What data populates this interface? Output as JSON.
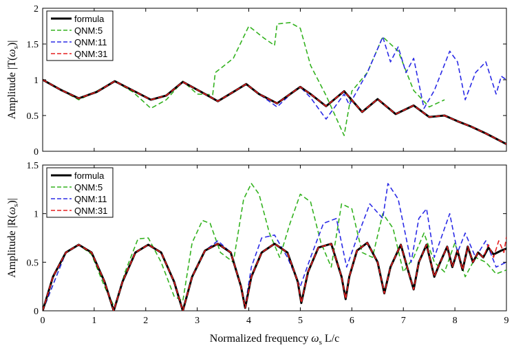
{
  "chart_data": [
    {
      "type": "line",
      "panel": "top",
      "ylabel": "Amplitude |T(ω_s)|",
      "ylabel_parts": {
        "prefix": "Amplitude |T(",
        "symbol": "ω",
        "subscript": "s",
        "suffix": ")|"
      },
      "xlim": [
        0,
        9
      ],
      "ylim": [
        0,
        2
      ],
      "xticks": [
        0,
        1,
        2,
        3,
        4,
        5,
        6,
        7,
        8,
        9
      ],
      "yticks": [
        0,
        0.5,
        1,
        1.5,
        2
      ],
      "ytick_labels": [
        "0",
        "0.5",
        "1",
        "1.5",
        "2"
      ],
      "legend": {
        "position": "top-left",
        "entries": [
          "formula",
          "QNM:5",
          "QNM:11",
          "QNM:31"
        ]
      },
      "series": [
        {
          "name": "formula",
          "color": "#000000",
          "style": "solid",
          "x": [
            0,
            0.35,
            0.7,
            1.05,
            1.4,
            1.75,
            2.1,
            2.4,
            2.72,
            3.05,
            3.4,
            3.7,
            3.95,
            4.2,
            4.55,
            4.9,
            5.0,
            5.2,
            5.5,
            5.85,
            6.2,
            6.5,
            6.85,
            7.2,
            7.5,
            7.8,
            8.05,
            8.3,
            8.6,
            9.0
          ],
          "y": [
            1.0,
            0.86,
            0.74,
            0.83,
            0.98,
            0.85,
            0.72,
            0.78,
            0.97,
            0.84,
            0.7,
            0.83,
            0.94,
            0.8,
            0.67,
            0.85,
            0.9,
            0.8,
            0.63,
            0.84,
            0.55,
            0.73,
            0.52,
            0.64,
            0.48,
            0.5,
            0.42,
            0.35,
            0.25,
            0.1
          ]
        },
        {
          "name": "QNM:5",
          "color": "#33B21F",
          "style": "dashed",
          "x": [
            0,
            0.35,
            0.7,
            1.05,
            1.4,
            1.75,
            2.1,
            2.4,
            2.72,
            3.0,
            3.3,
            3.35,
            3.7,
            4.0,
            4.3,
            4.5,
            4.55,
            4.8,
            5.0,
            5.2,
            5.5,
            5.85,
            6.0,
            6.3,
            6.6,
            6.9,
            7.2,
            7.5,
            7.8
          ],
          "y": [
            1.0,
            0.86,
            0.72,
            0.84,
            0.98,
            0.83,
            0.6,
            0.72,
            0.98,
            0.8,
            0.79,
            1.1,
            1.3,
            1.75,
            1.58,
            1.48,
            1.78,
            1.8,
            1.72,
            1.2,
            0.78,
            0.22,
            0.84,
            1.1,
            1.6,
            1.4,
            0.85,
            0.62,
            0.72
          ]
        },
        {
          "name": "QNM:11",
          "color": "#2A2AE6",
          "style": "dashed",
          "x": [
            0,
            0.35,
            0.7,
            1.05,
            1.4,
            1.75,
            2.1,
            2.4,
            2.72,
            3.05,
            3.4,
            3.7,
            3.95,
            4.2,
            4.55,
            4.9,
            5.0,
            5.2,
            5.5,
            5.85,
            5.95,
            6.3,
            6.6,
            6.75,
            6.9,
            7.05,
            7.2,
            7.4,
            7.6,
            7.9,
            8.05,
            8.2,
            8.4,
            8.6,
            8.8,
            8.9,
            9.0
          ],
          "y": [
            1.0,
            0.86,
            0.74,
            0.83,
            0.98,
            0.85,
            0.72,
            0.78,
            0.97,
            0.84,
            0.7,
            0.83,
            0.94,
            0.8,
            0.62,
            0.86,
            0.9,
            0.75,
            0.45,
            0.8,
            0.65,
            1.1,
            1.6,
            1.25,
            1.46,
            1.1,
            1.3,
            0.6,
            0.85,
            1.4,
            1.25,
            0.72,
            1.1,
            1.25,
            0.8,
            1.05,
            1.0
          ]
        },
        {
          "name": "QNM:31",
          "color": "#E61E1E",
          "style": "dashed",
          "x": [
            0,
            0.35,
            0.7,
            1.05,
            1.4,
            1.75,
            2.1,
            2.4,
            2.72,
            3.05,
            3.4,
            3.7,
            3.95,
            4.2,
            4.55,
            4.9,
            5.0,
            5.2,
            5.5,
            5.85,
            6.2,
            6.5,
            6.85,
            7.2,
            7.5,
            7.8,
            8.05,
            8.3,
            8.6,
            9.0
          ],
          "y": [
            1.0,
            0.86,
            0.74,
            0.83,
            0.98,
            0.85,
            0.72,
            0.78,
            0.97,
            0.84,
            0.7,
            0.83,
            0.94,
            0.8,
            0.67,
            0.85,
            0.9,
            0.8,
            0.63,
            0.84,
            0.55,
            0.73,
            0.52,
            0.64,
            0.48,
            0.5,
            0.42,
            0.35,
            0.25,
            0.1
          ]
        }
      ]
    },
    {
      "type": "line",
      "panel": "bottom",
      "xlabel": "Normalized frequency ω_s L/c",
      "xlabel_parts": {
        "prefix": "Normalized frequency ",
        "symbol": "ω",
        "subscript": "s",
        "suffix": " L/c"
      },
      "ylabel": "Amplitude |R(ω_s)|",
      "ylabel_parts": {
        "prefix": "Amplitude |R(",
        "symbol": "ω",
        "subscript": "s",
        "suffix": ")|"
      },
      "xlim": [
        0,
        9
      ],
      "ylim": [
        0,
        1.5
      ],
      "xticks": [
        0,
        1,
        2,
        3,
        4,
        5,
        6,
        7,
        8,
        9
      ],
      "xtick_labels": [
        "0",
        "1",
        "2",
        "3",
        "4",
        "5",
        "6",
        "7",
        "8",
        "9"
      ],
      "yticks": [
        0,
        0.5,
        1,
        1.5
      ],
      "ytick_labels": [
        "0",
        "0.5",
        "1",
        "1.5"
      ],
      "legend": {
        "position": "top-left",
        "entries": [
          "formula",
          "QNM:5",
          "QNM:11",
          "QNM:31"
        ]
      },
      "series": [
        {
          "name": "formula",
          "color": "#000000",
          "style": "solid",
          "x": [
            0,
            0.2,
            0.45,
            0.7,
            0.95,
            1.2,
            1.38,
            1.55,
            1.8,
            2.05,
            2.3,
            2.55,
            2.72,
            2.9,
            3.15,
            3.4,
            3.65,
            3.85,
            3.93,
            4.05,
            4.25,
            4.5,
            4.75,
            4.95,
            5.02,
            5.15,
            5.35,
            5.6,
            5.8,
            5.88,
            5.95,
            6.1,
            6.3,
            6.5,
            6.63,
            6.75,
            6.95,
            7.1,
            7.2,
            7.3,
            7.45,
            7.6,
            7.7,
            7.85,
            7.95,
            8.05,
            8.15,
            8.25,
            8.35,
            8.45,
            8.55,
            8.65,
            8.75,
            8.9,
            9.0
          ],
          "y": [
            0,
            0.35,
            0.6,
            0.68,
            0.6,
            0.3,
            0,
            0.3,
            0.6,
            0.68,
            0.6,
            0.3,
            0,
            0.35,
            0.62,
            0.69,
            0.6,
            0.25,
            0.03,
            0.35,
            0.6,
            0.69,
            0.6,
            0.3,
            0.08,
            0.4,
            0.65,
            0.69,
            0.35,
            0.12,
            0.35,
            0.62,
            0.7,
            0.5,
            0.18,
            0.45,
            0.68,
            0.4,
            0.22,
            0.5,
            0.68,
            0.35,
            0.48,
            0.66,
            0.45,
            0.62,
            0.42,
            0.66,
            0.5,
            0.6,
            0.55,
            0.65,
            0.58,
            0.62,
            0.64
          ]
        },
        {
          "name": "QNM:5",
          "color": "#33B21F",
          "style": "dashed",
          "x": [
            0,
            0.45,
            0.7,
            0.95,
            1.2,
            1.4,
            1.6,
            1.85,
            2.05,
            2.3,
            2.55,
            2.72,
            2.9,
            3.1,
            3.25,
            3.45,
            3.7,
            3.9,
            4.05,
            4.2,
            4.4,
            4.6,
            4.8,
            5.0,
            5.2,
            5.4,
            5.6,
            5.8,
            6.0,
            6.2,
            6.4,
            6.6,
            6.8,
            7.0,
            7.2,
            7.4,
            7.6,
            7.8,
            8.0,
            8.2,
            8.4,
            8.6,
            8.8,
            9.0
          ],
          "y": [
            0,
            0.6,
            0.68,
            0.58,
            0.25,
            0.03,
            0.4,
            0.74,
            0.75,
            0.5,
            0.15,
            0.1,
            0.7,
            0.93,
            0.9,
            0.6,
            0.5,
            1.15,
            1.31,
            1.2,
            0.8,
            0.55,
            0.9,
            1.2,
            1.12,
            0.7,
            0.45,
            1.1,
            1.05,
            0.6,
            0.55,
            1.0,
            0.85,
            0.4,
            0.55,
            0.8,
            0.5,
            0.4,
            0.7,
            0.35,
            0.55,
            0.5,
            0.38,
            0.42
          ]
        },
        {
          "name": "QNM:11",
          "color": "#2A2AE6",
          "style": "dashed",
          "x": [
            0,
            0.45,
            0.7,
            0.95,
            1.2,
            1.38,
            1.55,
            1.8,
            2.05,
            2.3,
            2.55,
            2.72,
            2.9,
            3.15,
            3.4,
            3.65,
            3.85,
            3.93,
            4.05,
            4.25,
            4.5,
            4.75,
            5.0,
            5.2,
            5.45,
            5.7,
            5.9,
            6.1,
            6.35,
            6.6,
            6.7,
            6.9,
            7.15,
            7.3,
            7.45,
            7.6,
            7.8,
            7.9,
            8.05,
            8.2,
            8.4,
            8.6,
            8.8,
            9.0
          ],
          "y": [
            0,
            0.6,
            0.68,
            0.6,
            0.3,
            0,
            0.3,
            0.6,
            0.68,
            0.6,
            0.3,
            0,
            0.35,
            0.62,
            0.72,
            0.6,
            0.25,
            0.05,
            0.45,
            0.75,
            0.78,
            0.55,
            0.25,
            0.55,
            0.9,
            0.95,
            0.45,
            0.75,
            1.1,
            0.95,
            1.31,
            1.15,
            0.5,
            0.95,
            1.05,
            0.55,
            0.85,
            1.0,
            0.6,
            0.8,
            0.55,
            0.72,
            0.45,
            0.5
          ]
        },
        {
          "name": "QNM:31",
          "color": "#E61E1E",
          "style": "dashed",
          "x": [
            0,
            0.2,
            0.45,
            0.7,
            0.95,
            1.2,
            1.38,
            1.55,
            1.8,
            2.05,
            2.3,
            2.55,
            2.72,
            2.9,
            3.15,
            3.4,
            3.65,
            3.85,
            3.93,
            4.05,
            4.25,
            4.5,
            4.75,
            4.95,
            5.02,
            5.15,
            5.35,
            5.6,
            5.8,
            5.88,
            5.95,
            6.1,
            6.3,
            6.5,
            6.63,
            6.75,
            6.95,
            7.1,
            7.2,
            7.3,
            7.45,
            7.6,
            7.7,
            7.85,
            7.95,
            8.05,
            8.15,
            8.25,
            8.35,
            8.45,
            8.55,
            8.65,
            8.75,
            8.85,
            8.95,
            9.0
          ],
          "y": [
            0,
            0.35,
            0.6,
            0.68,
            0.6,
            0.3,
            0,
            0.3,
            0.6,
            0.68,
            0.6,
            0.3,
            0,
            0.35,
            0.62,
            0.69,
            0.6,
            0.25,
            0.03,
            0.35,
            0.6,
            0.69,
            0.6,
            0.3,
            0.08,
            0.4,
            0.65,
            0.69,
            0.35,
            0.12,
            0.35,
            0.62,
            0.7,
            0.5,
            0.18,
            0.45,
            0.68,
            0.4,
            0.22,
            0.5,
            0.68,
            0.35,
            0.48,
            0.66,
            0.45,
            0.62,
            0.42,
            0.66,
            0.5,
            0.6,
            0.55,
            0.68,
            0.55,
            0.72,
            0.6,
            0.76
          ]
        }
      ]
    }
  ]
}
